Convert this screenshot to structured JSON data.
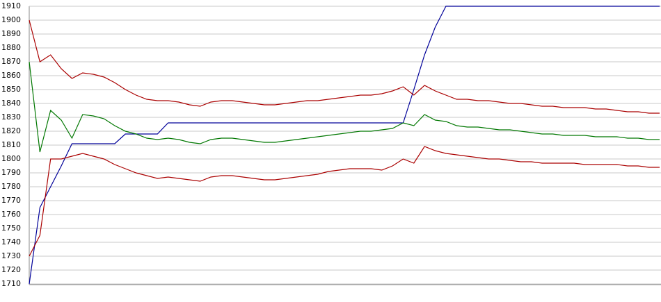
{
  "chart_data": {
    "type": "line",
    "categories": [
      null,
      null,
      null,
      null,
      null,
      null,
      null,
      null,
      null,
      null,
      null,
      null,
      null,
      null,
      null,
      null,
      null,
      null,
      null,
      null,
      null,
      null,
      null,
      null,
      null,
      null,
      null,
      null,
      null,
      null,
      null,
      null,
      null,
      null,
      null,
      null,
      null,
      null,
      null,
      null,
      null,
      null,
      null,
      null,
      null,
      null,
      null,
      null,
      null,
      null,
      null,
      null,
      null,
      null,
      null,
      null,
      null,
      null,
      null,
      null
    ],
    "series": [
      {
        "color": "#000099",
        "values": [
          1710,
          1765,
          1780,
          1795,
          1811,
          1811,
          1811,
          1811,
          1811,
          1818,
          1818,
          1818,
          1818,
          1826,
          1826,
          1826,
          1826,
          1826,
          1826,
          1826,
          1826,
          1826,
          1826,
          1826,
          1826,
          1826,
          1826,
          1826,
          1826,
          1826,
          1826,
          1826,
          1826,
          1826,
          1826,
          1826,
          1850,
          1875,
          1895,
          1910,
          1910,
          1910,
          1910,
          1910,
          1910,
          1910,
          1910,
          1910,
          1910,
          1910,
          1910,
          1910,
          1910,
          1910,
          1910,
          1910,
          1910,
          1910,
          1910,
          1910
        ]
      },
      {
        "color": "#aa0000",
        "values": [
          1900,
          1870,
          1875,
          1865,
          1858,
          1862,
          1861,
          1859,
          1855,
          1850,
          1846,
          1843,
          1842,
          1842,
          1841,
          1839,
          1838,
          1841,
          1842,
          1842,
          1841,
          1840,
          1839,
          1839,
          1840,
          1841,
          1842,
          1842,
          1843,
          1844,
          1845,
          1846,
          1846,
          1847,
          1849,
          1852,
          1846,
          1853,
          1849,
          1846,
          1843,
          1843,
          1842,
          1842,
          1841,
          1840,
          1840,
          1839,
          1838,
          1838,
          1837,
          1837,
          1837,
          1836,
          1836,
          1835,
          1834,
          1834,
          1833,
          1833
        ]
      },
      {
        "color": "#007700",
        "values": [
          1870,
          1805,
          1835,
          1828,
          1815,
          1832,
          1831,
          1829,
          1824,
          1820,
          1818,
          1815,
          1814,
          1815,
          1814,
          1812,
          1811,
          1814,
          1815,
          1815,
          1814,
          1813,
          1812,
          1812,
          1813,
          1814,
          1815,
          1816,
          1817,
          1818,
          1819,
          1820,
          1820,
          1821,
          1822,
          1826,
          1824,
          1832,
          1828,
          1827,
          1824,
          1823,
          1823,
          1822,
          1821,
          1821,
          1820,
          1819,
          1818,
          1818,
          1817,
          1817,
          1817,
          1816,
          1816,
          1816,
          1815,
          1815,
          1814,
          1814
        ]
      },
      {
        "color": "#aa0000",
        "values": [
          1730,
          1745,
          1800,
          1800,
          1802,
          1804,
          1802,
          1800,
          1796,
          1793,
          1790,
          1788,
          1786,
          1787,
          1786,
          1785,
          1784,
          1787,
          1788,
          1788,
          1787,
          1786,
          1785,
          1785,
          1786,
          1787,
          1788,
          1789,
          1791,
          1792,
          1793,
          1793,
          1793,
          1792,
          1795,
          1800,
          1797,
          1809,
          1806,
          1804,
          1803,
          1802,
          1801,
          1800,
          1800,
          1799,
          1798,
          1798,
          1797,
          1797,
          1797,
          1797,
          1796,
          1796,
          1796,
          1796,
          1795,
          1795,
          1794,
          1794
        ]
      }
    ],
    "ylim": [
      1710,
      1910
    ],
    "yticks": [
      1710,
      1720,
      1730,
      1740,
      1750,
      1760,
      1770,
      1780,
      1790,
      1800,
      1810,
      1820,
      1830,
      1840,
      1850,
      1860,
      1870,
      1880,
      1890,
      1900,
      1910
    ],
    "grid": true
  }
}
